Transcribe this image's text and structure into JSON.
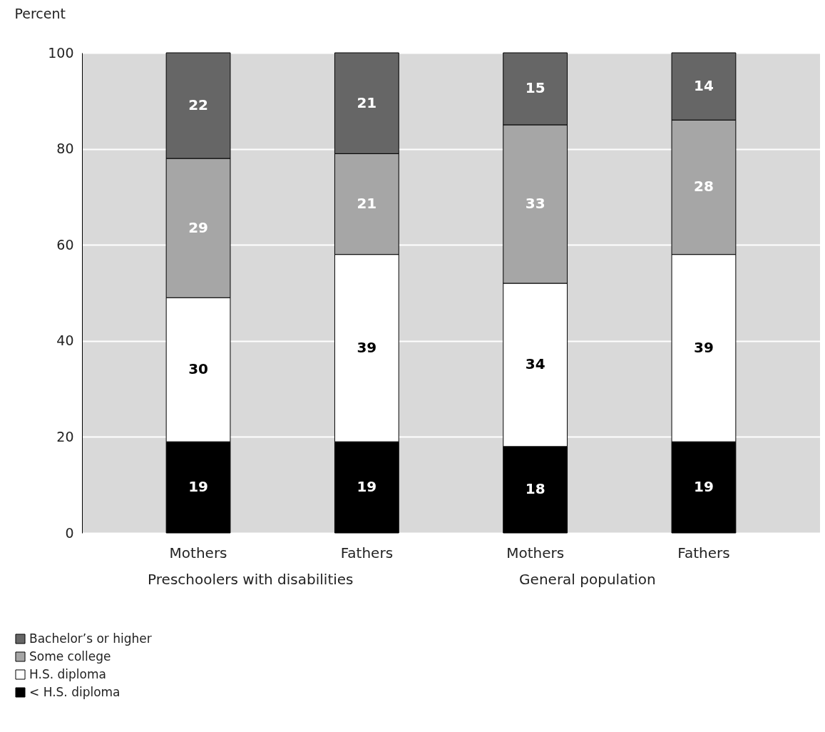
{
  "chart_data": {
    "type": "bar",
    "stacked": true,
    "ylabel": "Percent",
    "categories": [
      "Mothers",
      "Fathers",
      "Mothers",
      "Fathers"
    ],
    "series": [
      {
        "name": "< H.S. diploma",
        "color": "#000000",
        "values": [
          19,
          19,
          18,
          19
        ]
      },
      {
        "name": "H.S. diploma",
        "color": "#ffffff",
        "values": [
          30,
          39,
          34,
          39
        ]
      },
      {
        "name": "Some college",
        "color": "#a6a6a6",
        "values": [
          29,
          21,
          33,
          28
        ]
      },
      {
        "name": "Bachelor’s or higher",
        "color": "#666666",
        "values": [
          22,
          21,
          15,
          14
        ]
      }
    ],
    "ylim": [
      0,
      100
    ],
    "yticks": [
      0,
      20,
      40,
      60,
      80,
      100
    ],
    "grid": "y",
    "legend": "bottom left",
    "data_labels": true,
    "annotations": [
      "Preschoolers with disabilities",
      "General population"
    ]
  }
}
